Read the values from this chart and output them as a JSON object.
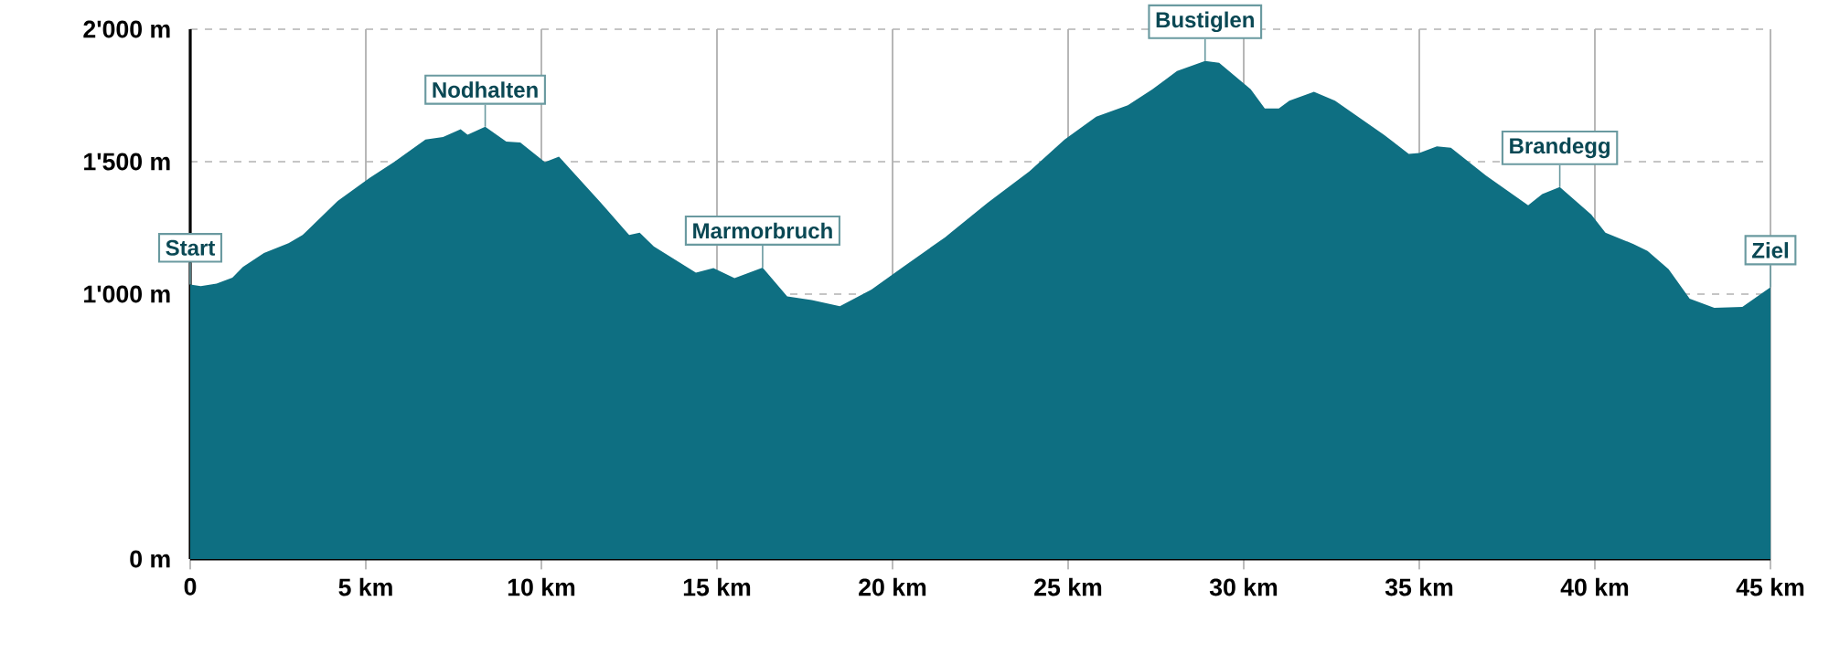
{
  "chart_data": {
    "type": "area",
    "x": [
      0,
      0.3,
      0.75,
      1.2,
      1.5,
      2.1,
      2.8,
      3.2,
      4.2,
      5.1,
      5.8,
      6.7,
      7.2,
      7.7,
      7.9,
      8.4,
      9.0,
      9.4,
      10.1,
      10.5,
      11.7,
      12.5,
      12.8,
      13.2,
      14.4,
      14.9,
      15.5,
      16.3,
      17.0,
      17.7,
      18.5,
      19.4,
      20.3,
      21.5,
      22.7,
      23.9,
      24.9,
      25.8,
      26.7,
      27.4,
      28.1,
      28.9,
      29.3,
      30.2,
      30.6,
      31.0,
      31.3,
      32.0,
      32.6,
      34.0,
      34.7,
      35.0,
      35.5,
      35.9,
      36.9,
      38.1,
      38.5,
      39.0,
      39.9,
      40.3,
      41.1,
      41.5,
      42.1,
      42.7,
      43.4,
      44.2,
      45.0
    ],
    "values": [
      1036,
      1030,
      1040,
      1062,
      1103,
      1155,
      1192,
      1223,
      1352,
      1438,
      1498,
      1584,
      1593,
      1622,
      1602,
      1632,
      1576,
      1572,
      1498,
      1519,
      1344,
      1223,
      1232,
      1180,
      1081,
      1098,
      1060,
      1100,
      991,
      978,
      954,
      1017,
      1103,
      1215,
      1344,
      1464,
      1584,
      1670,
      1713,
      1773,
      1842,
      1880,
      1873,
      1773,
      1701,
      1701,
      1730,
      1764,
      1730,
      1601,
      1529,
      1533,
      1558,
      1553,
      1447,
      1335,
      1378,
      1404,
      1300,
      1232,
      1189,
      1163,
      1094,
      983,
      948,
      952,
      1026
    ],
    "color": "#0e6f82",
    "xlim": [
      0,
      45
    ],
    "xticks": [
      0,
      {
        "value": 5,
        "label": "5 km"
      },
      {
        "value": 10,
        "label": "10 km"
      },
      {
        "value": 15,
        "label": "15 km"
      },
      {
        "value": 20,
        "label": "20 km"
      },
      {
        "value": 25,
        "label": "25 km"
      },
      {
        "value": 30,
        "label": "30 km"
      },
      {
        "value": 35,
        "label": "35 km"
      },
      {
        "value": 40,
        "label": "40 km"
      },
      {
        "value": 45,
        "label": "45 km"
      }
    ],
    "ylim": [
      0,
      2000
    ],
    "yticks": [
      {
        "value": 0,
        "label": "0 m"
      },
      {
        "value": 1000,
        "label": "1'000 m"
      },
      {
        "value": 1500,
        "label": "1'500 m"
      },
      {
        "value": 2000,
        "label": "2'000 m"
      }
    ],
    "grid": true,
    "annotations": [
      {
        "text": "Start",
        "x": 0,
        "y": 1036
      },
      {
        "text": "Nodhalten",
        "x": 8.4,
        "y": 1632
      },
      {
        "text": "Marmorbruch",
        "x": 16.3,
        "y": 1100
      },
      {
        "text": "Bustiglen",
        "x": 28.9,
        "y": 1880
      },
      {
        "text": "Brandegg",
        "x": 39.0,
        "y": 1404
      },
      {
        "text": "Ziel",
        "x": 45.0,
        "y": 1026
      }
    ]
  }
}
